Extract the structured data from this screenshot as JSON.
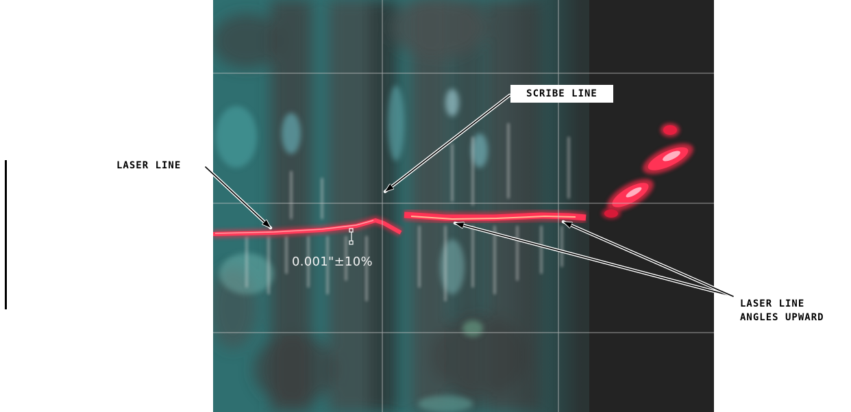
{
  "labels": {
    "scribe_line": "SCRIBE LINE",
    "laser_line": "LASER LINE",
    "laser_angles_line1": "LASER LINE",
    "laser_angles_line2": "ANGLES UPWARD",
    "measurement": "0.001\"±10%"
  },
  "colors": {
    "background": "#ffffff",
    "image_teal": "#2f6f70",
    "image_dark": "#262626",
    "laser": "#ff2a4a",
    "grid": "#c9c9c9",
    "label_text": "#000000"
  }
}
